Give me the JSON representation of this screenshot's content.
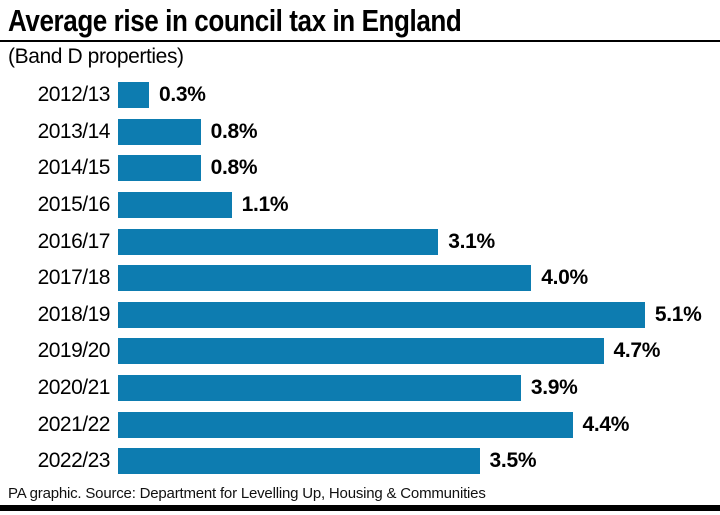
{
  "title": "Average rise in council tax in England",
  "subtitle": "(Band D properties)",
  "footer": "PA graphic. Source: Department for Levelling Up, Housing & Communities",
  "colors": {
    "bar": "#0d7cb0",
    "rule": "#000000",
    "background": "#ffffff",
    "text": "#000000"
  },
  "chart_data": {
    "type": "bar",
    "orientation": "horizontal",
    "title": "Average rise in council tax in England",
    "subtitle": "(Band D properties)",
    "categories": [
      "2012/13",
      "2013/14",
      "2014/15",
      "2015/16",
      "2016/17",
      "2017/18",
      "2018/19",
      "2019/20",
      "2020/21",
      "2021/22",
      "2022/23"
    ],
    "values": [
      0.3,
      0.8,
      0.8,
      1.1,
      3.1,
      4.0,
      5.1,
      4.7,
      3.9,
      4.4,
      3.5
    ],
    "value_labels": [
      "0.3%",
      "0.8%",
      "0.8%",
      "1.1%",
      "3.1%",
      "4.0%",
      "5.1%",
      "4.7%",
      "3.9%",
      "4.4%",
      "3.5%"
    ],
    "unit": "%",
    "xlim": [
      0,
      5.5
    ],
    "grid": false,
    "legend": false,
    "source": "PA graphic. Source: Department for Levelling Up, Housing & Communities"
  }
}
